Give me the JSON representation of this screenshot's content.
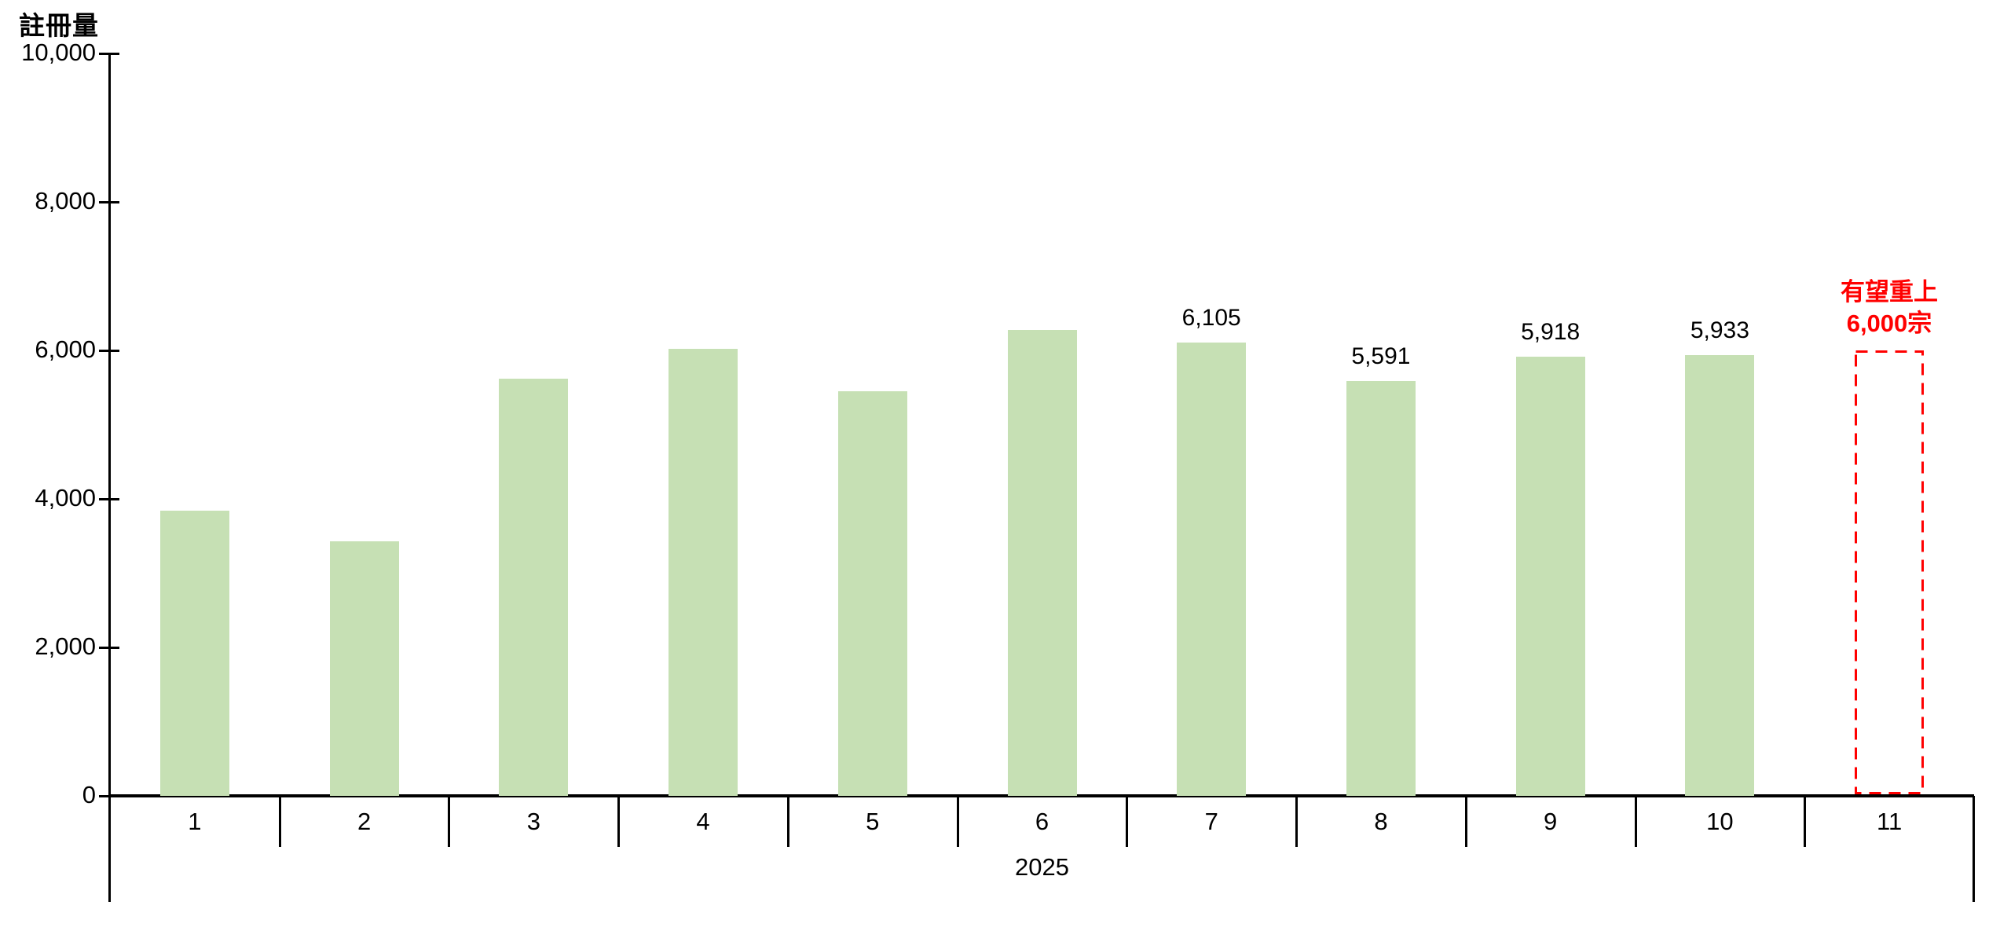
{
  "chart_data": {
    "type": "bar",
    "title": "註冊量",
    "year_group_label": "2025",
    "categories": [
      "1",
      "2",
      "3",
      "4",
      "5",
      "6",
      "7",
      "8",
      "9",
      "10",
      "11"
    ],
    "series": [
      {
        "name": "註冊量",
        "values": [
          3840,
          3430,
          5620,
          6020,
          5450,
          6270,
          6105,
          5591,
          5918,
          5933,
          null
        ]
      }
    ],
    "data_labels": [
      null,
      null,
      null,
      null,
      null,
      null,
      "6,105",
      "5,591",
      "5,918",
      "5,933",
      null
    ],
    "forecast": {
      "category": "11",
      "value": 6000,
      "annotation_line1": "有望重上",
      "annotation_line2": "6,000宗"
    },
    "ylim": [
      0,
      10000
    ],
    "ytick_labels": [
      "0",
      "2,000",
      "4,000",
      "6,000",
      "8,000",
      "10,000"
    ],
    "grid": false,
    "legend_position": "none",
    "colors": {
      "bar_fill": "#c6e0b4",
      "forecast_stroke": "#ff0000",
      "annotation_text": "#ff0000",
      "axis": "#000000",
      "text": "#000000"
    }
  }
}
